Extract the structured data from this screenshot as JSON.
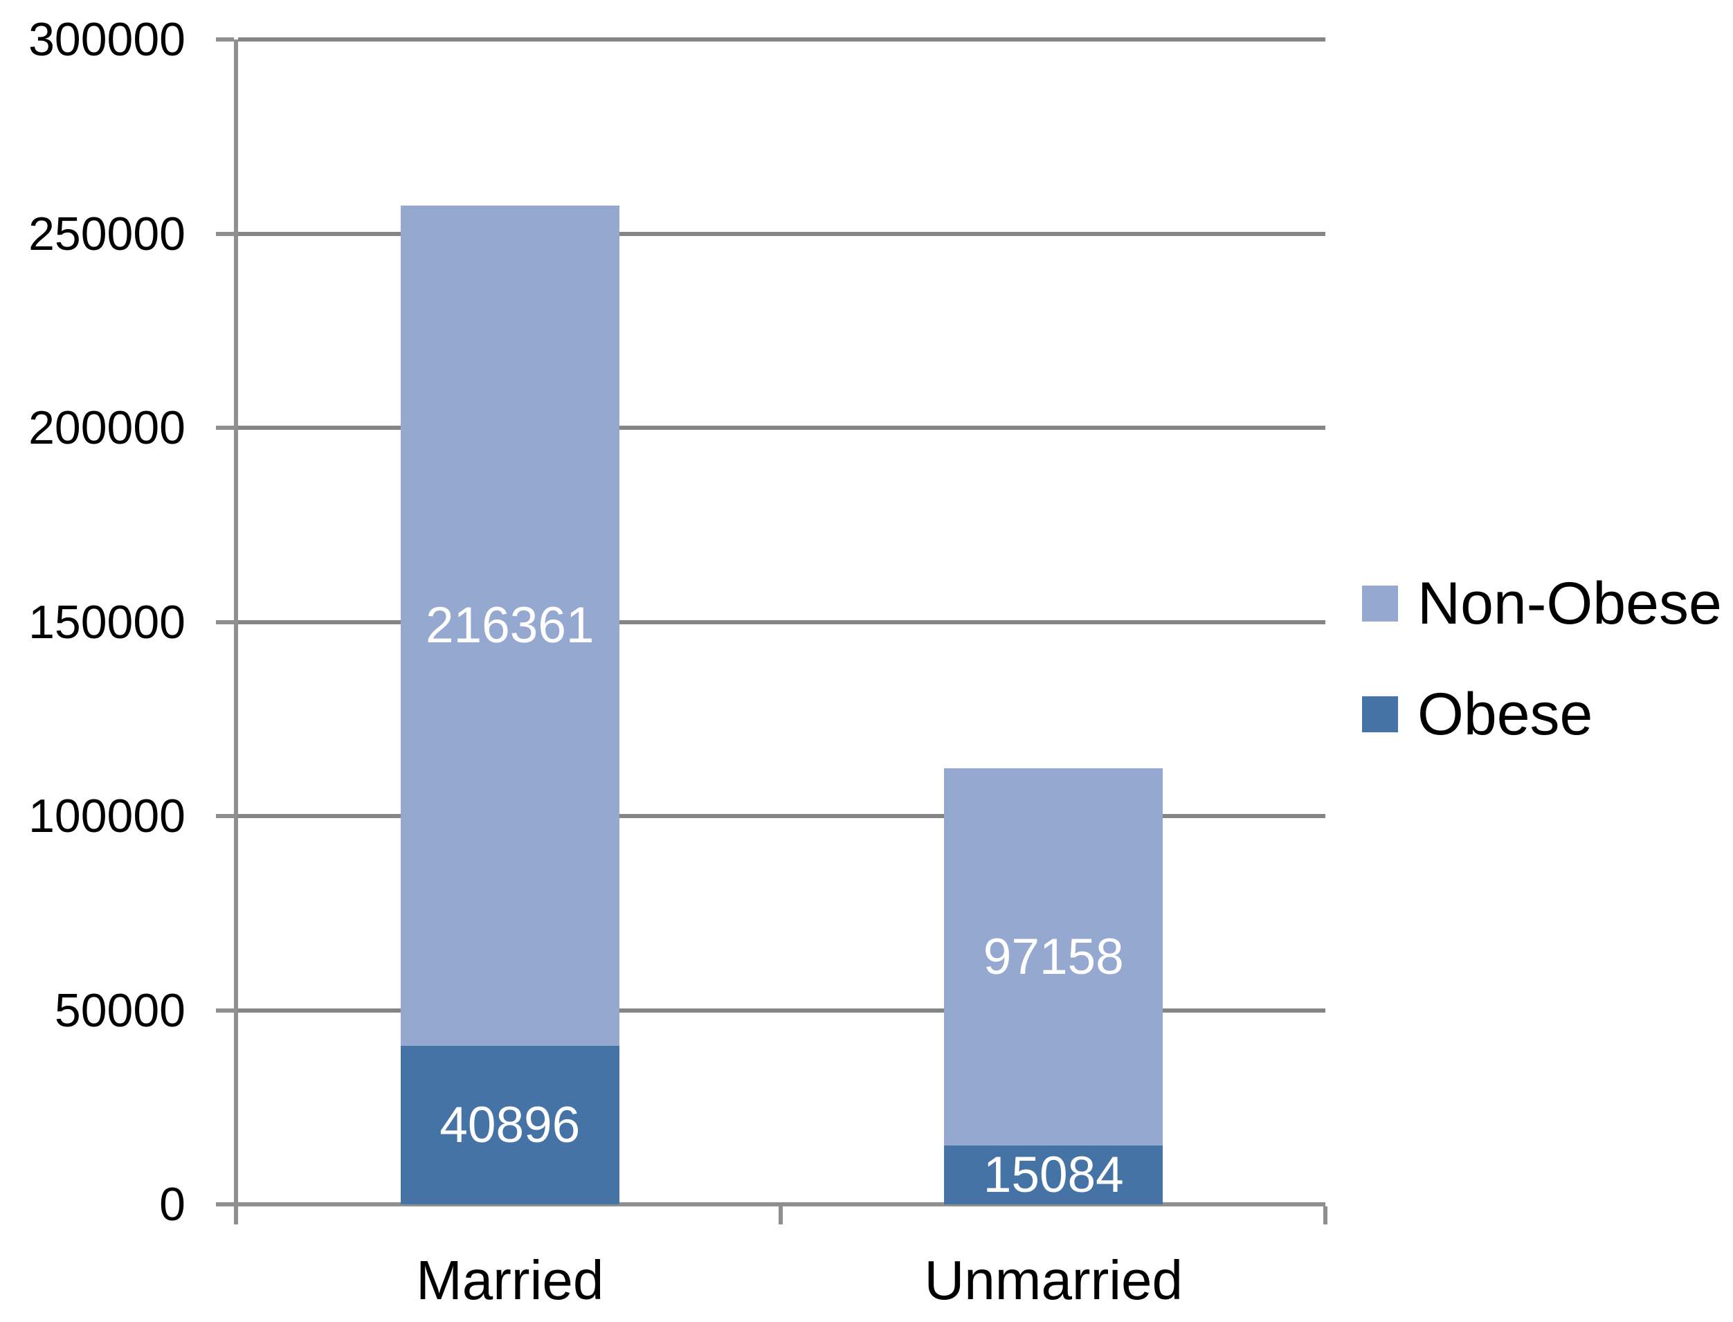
{
  "chart_data": {
    "type": "bar",
    "stacked": true,
    "categories": [
      "Married",
      "Unmarried"
    ],
    "series": [
      {
        "name": "Obese",
        "color": "#4673A5",
        "values": [
          40896,
          15084
        ]
      },
      {
        "name": "Non-Obese",
        "color": "#94A8D0",
        "values": [
          216361,
          97158
        ]
      }
    ],
    "stack_order": "bottom-to-top",
    "totals": [
      257257,
      112242
    ],
    "ylim": [
      0,
      300000
    ],
    "yticks": [
      0,
      50000,
      100000,
      150000,
      200000,
      250000,
      300000
    ],
    "grid": true,
    "data_labels": true,
    "legend_position": "right",
    "legend_order": [
      "Non-Obese",
      "Obese"
    ]
  },
  "style": {
    "grid_color": "#858585",
    "axis_color": "#8F8F8F",
    "tick_label_color": "#000000",
    "data_label_color": "#FFFFFF",
    "background": "#FFFFFF"
  }
}
